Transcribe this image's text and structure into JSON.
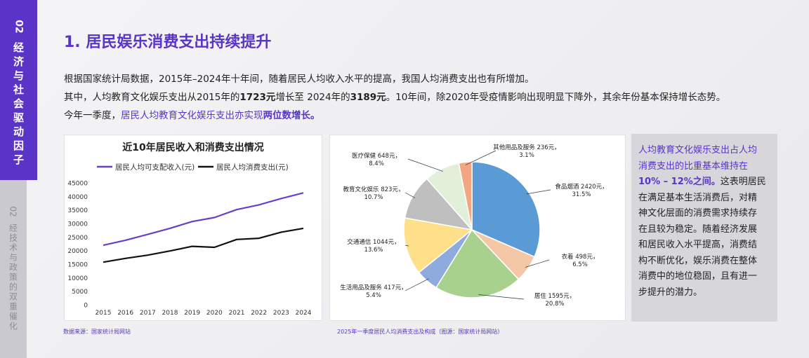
{
  "sidebar": {
    "active": {
      "num": "02",
      "label": "经济与社会驱动因子"
    },
    "inactive": {
      "num": "02",
      "label": "经技术与政策的双重催化"
    }
  },
  "title": "1. 居民娱乐消费支出持续提升",
  "para1": "根据国家统计局数据，2015年–2024年十年间，随着居民人均收入水平的提高，我国人均消费支出也有所增加。",
  "para2": {
    "p1": "其中，人均教育文化娱乐支出从2015年的",
    "v1": "1723元",
    "p2": "增长至 2024年的",
    "v2": "3189元",
    "p3": "。10年间，除2020年受疫情影响出现明显下降外，其余年份基本保持增长态势。"
  },
  "para3": {
    "p1": "今年一季度，",
    "p2": "居民人均教育文化娱乐支出亦实现",
    "p3": "两位数增长。"
  },
  "side_box": {
    "l1": "人均教育文化娱乐支出占人均",
    "l2": "消费支出的比重基本维持在",
    "l3b": "10% – 12%之间。",
    "l3": "这表明居民",
    "l4": "在满足基本生活消费后，对精",
    "l5": "神文化层面的消费需求持续存",
    "l6": "在且较为稳定。随着经济发展",
    "l7": "和居民收入水平提高，消费结",
    "l8": "构不断优化，娱乐消费在整体",
    "l9": "消费中的地位稳固，且有进一",
    "l10": "步提升的潜力。"
  },
  "source_left": "数据来源：国家统计局网站",
  "source_right": "2025年一季度居民人均消费支出及构成（图源：国家统计局网站）",
  "colors": {
    "accent": "#5a34c6"
  },
  "chart_data": [
    {
      "type": "line",
      "title": "近10年居民收入和消费支出情况",
      "x": [
        "2015",
        "2016",
        "2017",
        "2018",
        "2019",
        "2020",
        "2021",
        "2022",
        "2023",
        "2024"
      ],
      "series": [
        {
          "name": "居民人均可支配收入(元)",
          "color": "#6a3fc8",
          "values": [
            21966,
            23821,
            25974,
            28228,
            30733,
            32189,
            35128,
            36883,
            39218,
            41314
          ]
        },
        {
          "name": "居民人均消费支出(元)",
          "color": "#111111",
          "values": [
            15712,
            17111,
            18322,
            19853,
            21559,
            21210,
            24100,
            24538,
            26796,
            28227
          ]
        }
      ],
      "yticks": [
        "0",
        "5000",
        "10000",
        "15000",
        "20000",
        "25000",
        "30000",
        "35000",
        "40000",
        "45000"
      ],
      "ylim": [
        0,
        45000
      ],
      "legend": "top"
    },
    {
      "type": "pie",
      "slices": [
        {
          "label": "食品烟酒",
          "amount": "2420元，",
          "pct": "31.5%",
          "value": 31.5,
          "color": "#5b9bd5"
        },
        {
          "label": "衣着",
          "amount": "498元，",
          "pct": "6.5%",
          "value": 6.5,
          "color": "#f4c7a6"
        },
        {
          "label": "居住",
          "amount": "1595元，",
          "pct": "20.8%",
          "value": 20.8,
          "color": "#a9d18e"
        },
        {
          "label": "生活用品及服务",
          "amount": "417元，",
          "pct": "5.4%",
          "value": 5.4,
          "color": "#8faadc"
        },
        {
          "label": "交通通信",
          "amount": "1044元，",
          "pct": "13.6%",
          "value": 13.6,
          "color": "#ffe08a"
        },
        {
          "label": "教育文化娱乐",
          "amount": "823元，",
          "pct": "10.7%",
          "value": 10.7,
          "color": "#bfbfbf"
        },
        {
          "label": "医疗保健",
          "amount": "648元，",
          "pct": "8.4%",
          "value": 8.4,
          "color": "#e2efd9"
        },
        {
          "label": "其他用品及服务",
          "amount": "236元，",
          "pct": "3.1%",
          "value": 3.1,
          "color": "#f4a582"
        }
      ]
    }
  ]
}
